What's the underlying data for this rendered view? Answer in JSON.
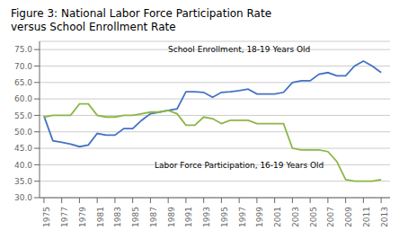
{
  "chart_data": {
    "type": "line",
    "title": "Figure 3: National Labor Force Participation Rate\nversus School Enrollment Rate",
    "x": [
      1975,
      1976,
      1977,
      1978,
      1979,
      1980,
      1981,
      1982,
      1983,
      1984,
      1985,
      1986,
      1987,
      1988,
      1989,
      1990,
      1991,
      1992,
      1993,
      1994,
      1995,
      1996,
      1997,
      1998,
      1999,
      2000,
      2001,
      2002,
      2003,
      2004,
      2005,
      2006,
      2007,
      2008,
      2009,
      2010,
      2011,
      2012,
      2013
    ],
    "series": [
      {
        "color": "#4472C4",
        "values": [
          54.8,
          47.3,
          46.8,
          46.3,
          45.5,
          46.0,
          49.5,
          49.0,
          49.0,
          51.0,
          51.0,
          53.5,
          55.5,
          56.0,
          56.5,
          57.0,
          62.2,
          62.2,
          62.0,
          60.5,
          62.0,
          62.2,
          62.5,
          63.0,
          61.5,
          61.5,
          61.5,
          62.0,
          65.0,
          65.5,
          65.5,
          67.5,
          68.0,
          67.0,
          67.0,
          70.0,
          71.5,
          70.0,
          68.0
        ]
      },
      {
        "color": "#8DB646",
        "values": [
          54.5,
          55.0,
          55.0,
          55.0,
          58.5,
          58.5,
          55.0,
          54.5,
          54.5,
          55.0,
          55.0,
          55.5,
          56.0,
          56.0,
          56.5,
          55.5,
          52.0,
          52.0,
          54.5,
          54.0,
          52.5,
          53.5,
          53.5,
          53.5,
          52.5,
          52.5,
          52.5,
          52.5,
          45.0,
          44.5,
          44.5,
          44.5,
          44.0,
          41.0,
          35.5,
          35.0,
          35.0,
          35.0,
          35.5
        ]
      }
    ],
    "annotations": [
      {
        "text": "School Enrollment, 18-19 Years Old",
        "x": 1997,
        "y": 72.5
      },
      {
        "text": "Labor Force Participation, 16-19 Years Old",
        "x": 1997,
        "y": 37.5
      }
    ],
    "xlim": [
      1974.5,
      2014
    ],
    "xticks": [
      1975,
      1977,
      1979,
      1981,
      1983,
      1985,
      1987,
      1989,
      1991,
      1993,
      1995,
      1997,
      1999,
      2001,
      2003,
      2005,
      2007,
      2009,
      2011,
      2013
    ],
    "ylim": [
      30.0,
      77.5
    ],
    "yticks": [
      {
        "value": 30.0,
        "label": "30.0"
      },
      {
        "value": 35.0,
        "label": "35.0"
      },
      {
        "value": 40.0,
        "label": "40.0"
      },
      {
        "value": 45.0,
        "label": "45.0"
      },
      {
        "value": 50.0,
        "label": "50.0"
      },
      {
        "value": 55.0,
        "label": "55.0"
      },
      {
        "value": 60.0,
        "label": "60.0"
      },
      {
        "value": 65.0,
        "label": "65.0"
      },
      {
        "value": 70.0,
        "label": "70.0"
      },
      {
        "value": 75.0,
        "label": "75.0"
      }
    ],
    "grid": true
  }
}
